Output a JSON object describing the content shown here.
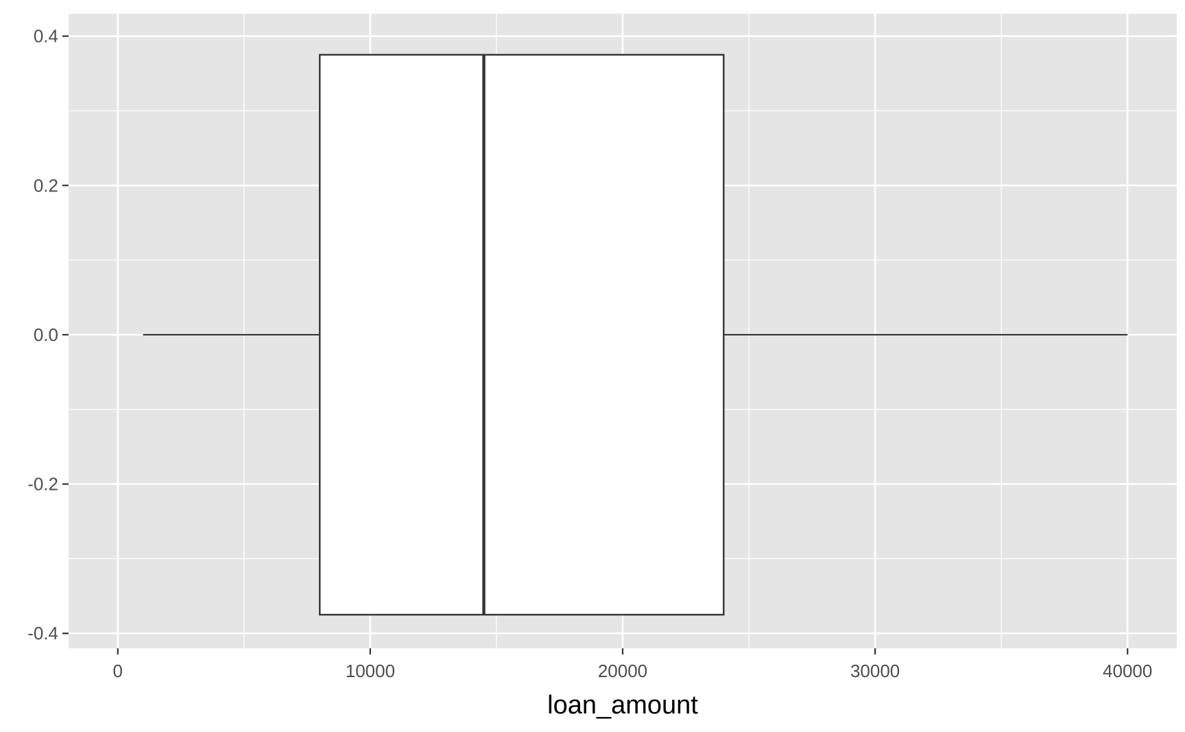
{
  "chart_data": {
    "type": "box",
    "xlabel": "loan_amount",
    "ylabel": "",
    "title": "",
    "xlim": [
      -1950,
      41950
    ],
    "ylim": [
      -0.42,
      0.43
    ],
    "x_ticks": [
      0,
      10000,
      20000,
      30000,
      40000
    ],
    "x_tick_labels": [
      "0",
      "10000",
      "20000",
      "30000",
      "40000"
    ],
    "y_ticks": [
      0.4,
      0.2,
      0.0,
      -0.2,
      -0.4
    ],
    "y_tick_labels": [
      "0.4",
      "0.2",
      "0.0",
      "-0.2",
      "-0.4"
    ],
    "grid": true,
    "box": {
      "y_center": 0.0,
      "y_min": -0.375,
      "y_max": 0.375,
      "whisker_low": 1000,
      "q1": 8000,
      "median": 14500,
      "q3": 24000,
      "whisker_high": 40000
    },
    "colors": {
      "panel_background": "#e5e5e5",
      "grid_line": "#ffffff",
      "box_fill": "#ffffff",
      "box_stroke": "#333333",
      "tick_mark": "#333333"
    }
  }
}
